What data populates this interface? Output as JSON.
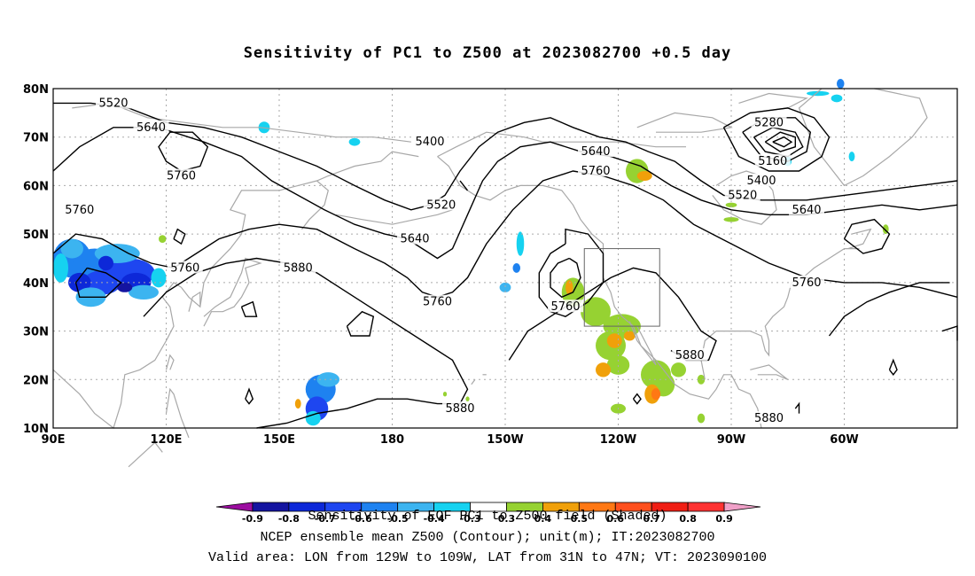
{
  "title": "Sensitivity of PC1 to Z500 at 2023082700 +0.5 day",
  "lat_labels": [
    "80N",
    "70N",
    "60N",
    "50N",
    "40N",
    "30N",
    "20N",
    "10N"
  ],
  "lon_labels": [
    "90E",
    "120E",
    "150E",
    "180",
    "150W",
    "120W",
    "90W",
    "60W"
  ],
  "contour_labels": [
    {
      "text": "5520",
      "lon": 106,
      "lat": 77
    },
    {
      "text": "5640",
      "lon": 116,
      "lat": 72
    },
    {
      "text": "5760",
      "lon": 124,
      "lat": 62
    },
    {
      "text": "5760",
      "lon": 97,
      "lat": 55
    },
    {
      "text": "5760",
      "lon": 125,
      "lat": 43
    },
    {
      "text": "5880",
      "lon": 155,
      "lat": 43
    },
    {
      "text": "5400",
      "lon": 190,
      "lat": 69
    },
    {
      "text": "5520",
      "lon": 193,
      "lat": 56
    },
    {
      "text": "5640",
      "lon": 186,
      "lat": 49
    },
    {
      "text": "5760",
      "lon": 192,
      "lat": 36
    },
    {
      "text": "5880",
      "lon": 198,
      "lat": 14
    },
    {
      "text": "5640",
      "lon": 234,
      "lat": 67
    },
    {
      "text": "5760",
      "lon": 234,
      "lat": 63
    },
    {
      "text": "5760",
      "lon": 226,
      "lat": 35
    },
    {
      "text": "5880",
      "lon": 259,
      "lat": 25
    },
    {
      "text": "5880",
      "lon": 280,
      "lat": 12
    },
    {
      "text": "5280",
      "lon": 280,
      "lat": 73
    },
    {
      "text": "5160",
      "lon": 281,
      "lat": 65
    },
    {
      "text": "5400",
      "lon": 278,
      "lat": 61
    },
    {
      "text": "5520",
      "lon": 273,
      "lat": 58
    },
    {
      "text": "5640",
      "lon": 290,
      "lat": 55
    },
    {
      "text": "5760",
      "lon": 290,
      "lat": 40
    }
  ],
  "valid_box": {
    "lon_min": 231,
    "lon_max": 251,
    "lat_min": 31,
    "lat_max": 47
  },
  "colorbar": {
    "levels": [
      "-0.9",
      "-0.8",
      "-0.7",
      "-0.6",
      "-0.5",
      "-0.4",
      "-0.3",
      "0.3",
      "0.4",
      "0.5",
      "0.6",
      "0.7",
      "0.8",
      "0.9"
    ],
    "colors": [
      "#9c0da0",
      "#1414a0",
      "#0d28d8",
      "#1e46f0",
      "#1e82f0",
      "#3cb4f0",
      "#16d2f0",
      "#ffffff",
      "#96d232",
      "#f0a00a",
      "#ff7814",
      "#ff501e",
      "#f01e14",
      "#ff3232",
      "#f0a0c8"
    ],
    "caption": "Sensitivity of EOF PC1 to Z500 field (Shaded)"
  },
  "footer": {
    "line1": "NCEP ensemble mean Z500 (Contour); unit(m); IT:2023082700",
    "line2": "Valid area: LON from 129W to 109W, LAT from 31N to 47N; VT: 2023090100"
  }
}
